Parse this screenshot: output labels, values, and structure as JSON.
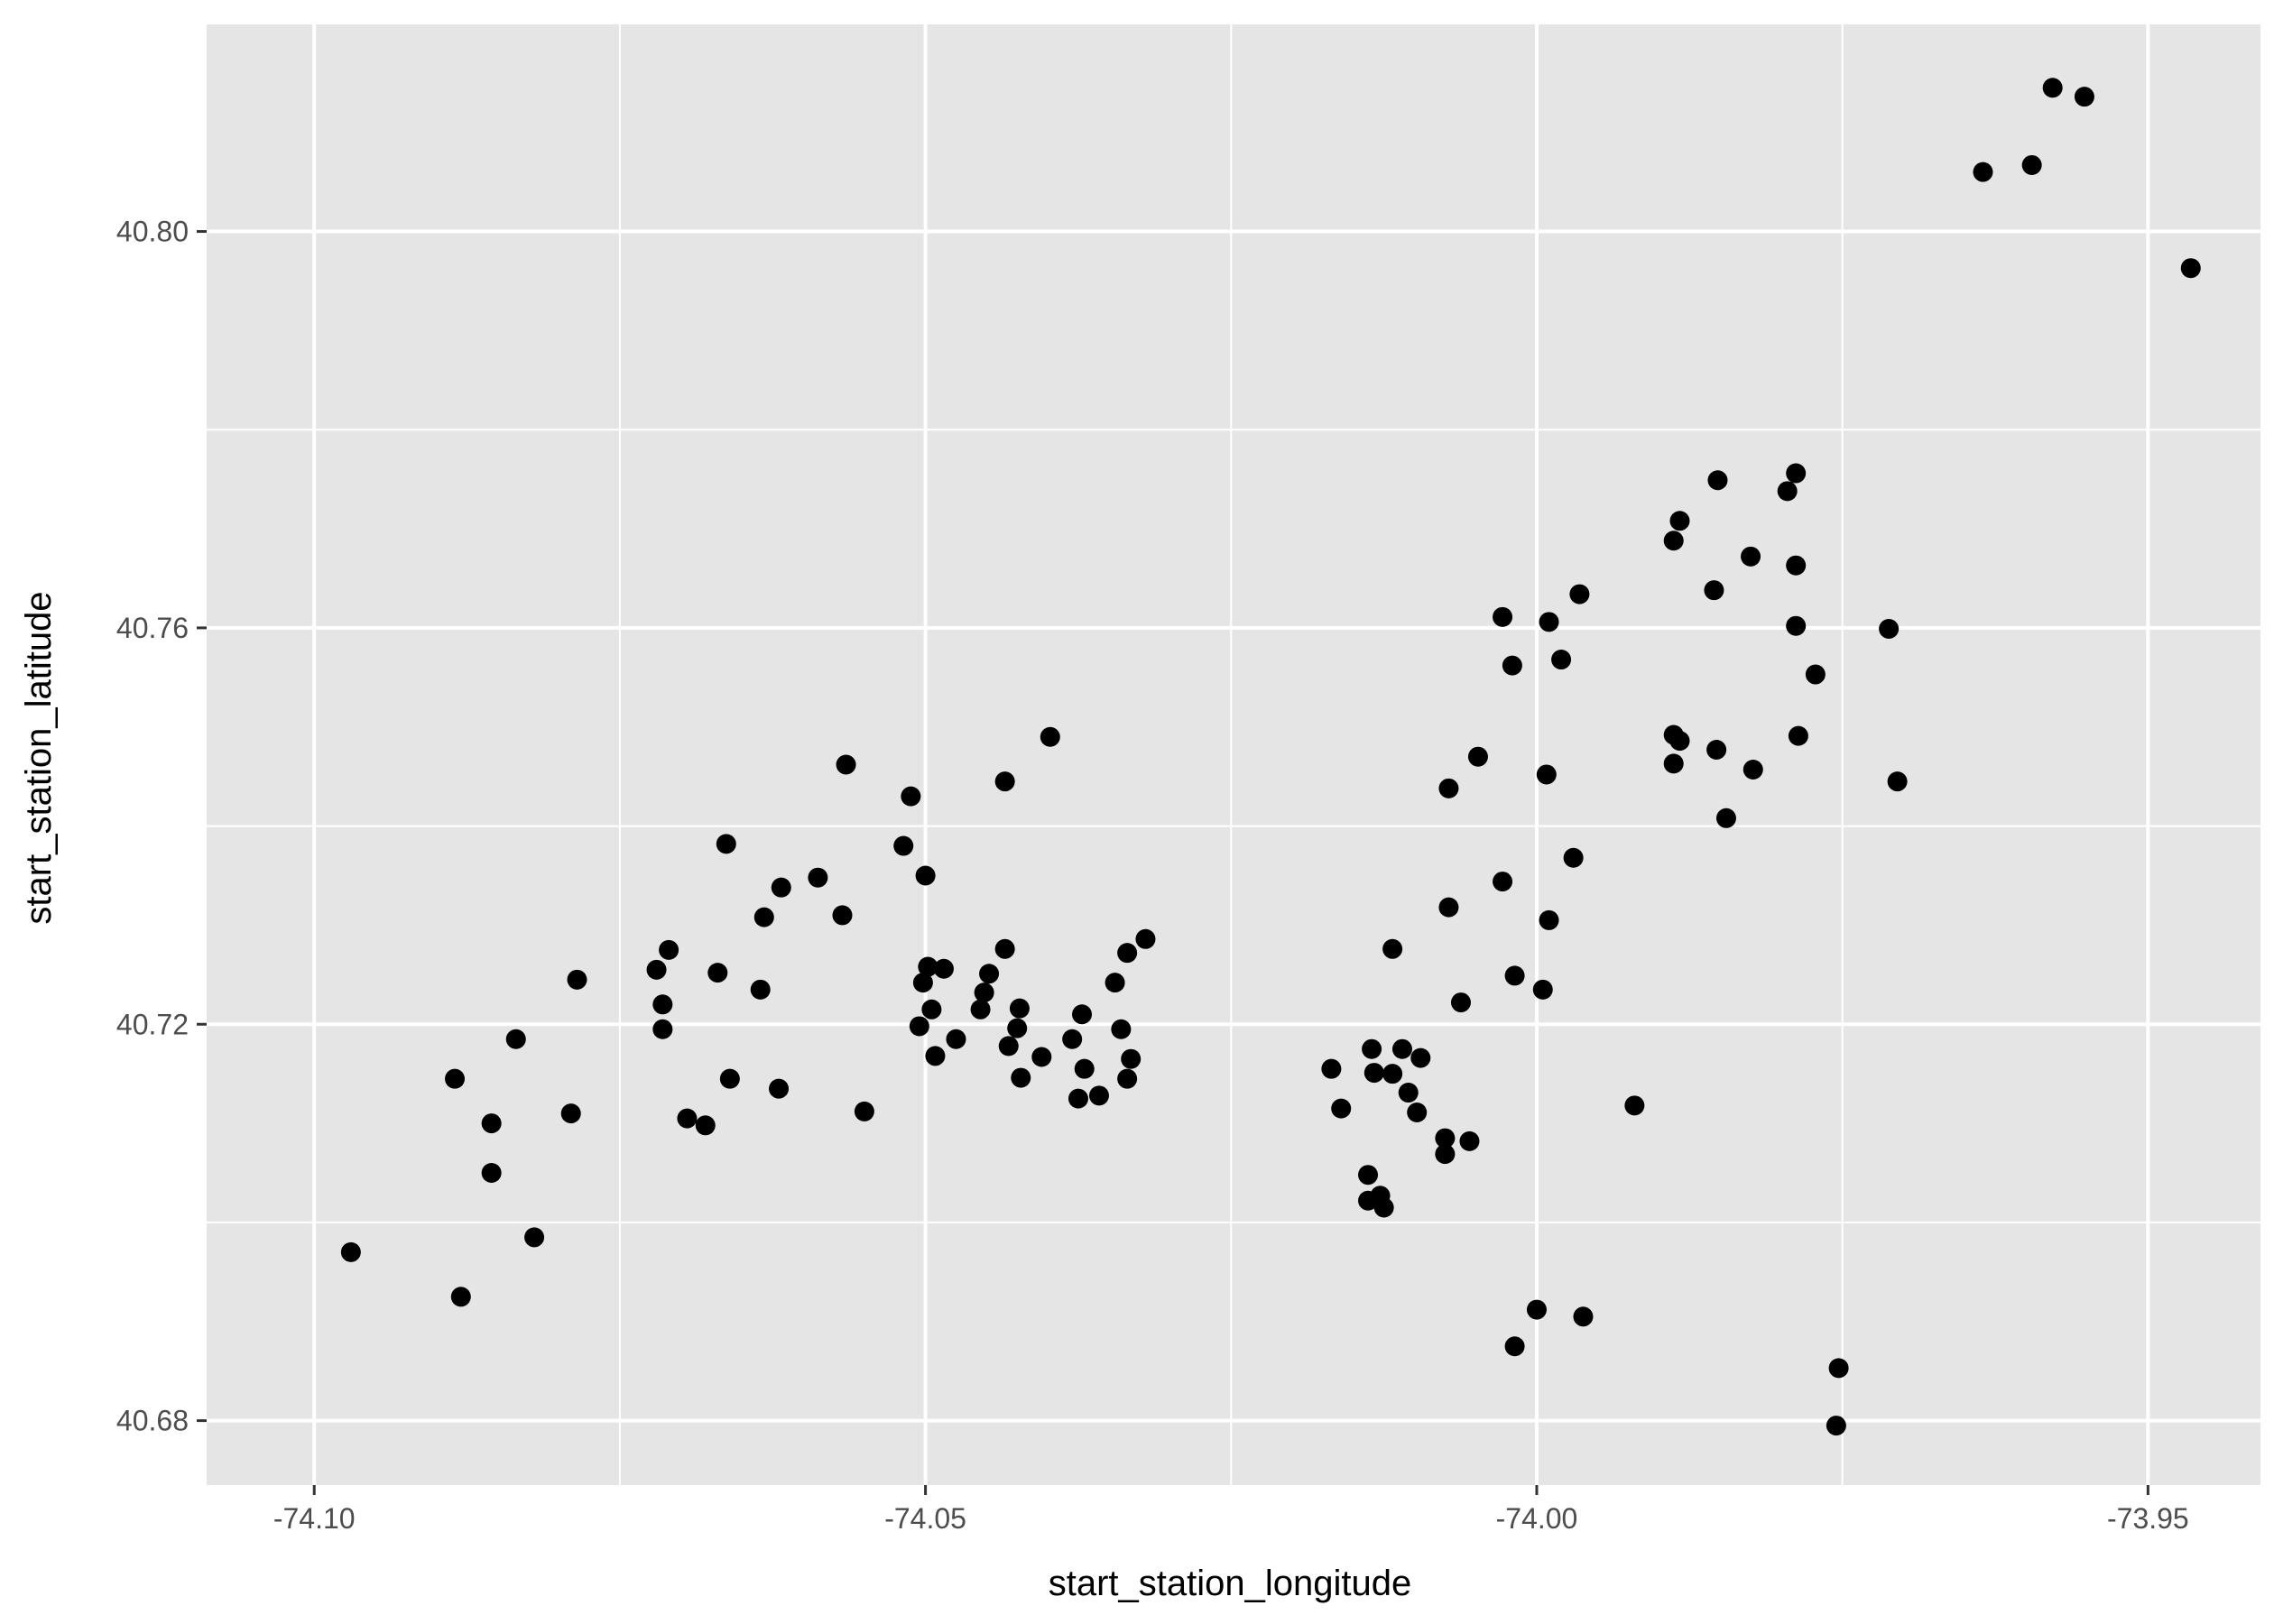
{
  "chart_data": {
    "type": "scatter",
    "title": "",
    "xlabel": "start_station_longitude",
    "ylabel": "start_station_latitude",
    "xlim": [
      -74.1088,
      -73.9408
    ],
    "ylim": [
      40.6735,
      40.8209
    ],
    "x_ticks": [
      -74.1,
      -74.05,
      -74.0,
      -73.95
    ],
    "x_tick_labels": [
      "-74.10",
      "-74.05",
      "-74.00",
      "-73.95"
    ],
    "y_ticks": [
      40.68,
      40.72,
      40.76,
      40.8
    ],
    "y_tick_labels": [
      "40.68",
      "40.72",
      "40.76",
      "40.80"
    ],
    "grid": true,
    "legend": "none",
    "colors": {
      "panel": "#e5e5e5",
      "grid": "#ffffff",
      "point": "#000000"
    },
    "points": [
      [
        -74.097,
        40.697
      ],
      [
        -74.088,
        40.6925
      ],
      [
        -74.0885,
        40.7145
      ],
      [
        -74.0855,
        40.71
      ],
      [
        -74.0855,
        40.705
      ],
      [
        -74.0835,
        40.7185
      ],
      [
        -74.082,
        40.6985
      ],
      [
        -74.0785,
        40.7245
      ],
      [
        -74.079,
        40.711
      ],
      [
        -74.072,
        40.7255
      ],
      [
        -74.0715,
        40.722
      ],
      [
        -74.0715,
        40.7195
      ],
      [
        -74.071,
        40.7275
      ],
      [
        -74.0695,
        40.7105
      ],
      [
        -74.068,
        40.7098
      ],
      [
        -74.067,
        40.7252
      ],
      [
        -74.0663,
        40.7382
      ],
      [
        -74.066,
        40.7145
      ],
      [
        -74.0635,
        40.7235
      ],
      [
        -74.0632,
        40.7308
      ],
      [
        -74.0618,
        40.7338
      ],
      [
        -74.062,
        40.7135
      ],
      [
        -74.0588,
        40.7348
      ],
      [
        -74.0568,
        40.731
      ],
      [
        -74.0565,
        40.7462
      ],
      [
        -74.055,
        40.7112
      ],
      [
        -74.0518,
        40.738
      ],
      [
        -74.0512,
        40.743
      ],
      [
        -74.0505,
        40.7198
      ],
      [
        -74.0502,
        40.7242
      ],
      [
        -74.0498,
        40.7258
      ],
      [
        -74.05,
        40.735
      ],
      [
        -74.0495,
        40.7215
      ],
      [
        -74.0492,
        40.7168
      ],
      [
        -74.0485,
        40.7256
      ],
      [
        -74.0475,
        40.7185
      ],
      [
        -74.0455,
        40.7215
      ],
      [
        -74.0452,
        40.7232
      ],
      [
        -74.0448,
        40.7251
      ],
      [
        -74.0435,
        40.7276
      ],
      [
        -74.0435,
        40.7445
      ],
      [
        -74.0432,
        40.7178
      ],
      [
        -74.0425,
        40.7196
      ],
      [
        -74.0423,
        40.7216
      ],
      [
        -74.0422,
        40.7146
      ],
      [
        -74.0405,
        40.7167
      ],
      [
        -74.0398,
        40.749
      ],
      [
        -74.038,
        40.7185
      ],
      [
        -74.0375,
        40.7125
      ],
      [
        -74.0372,
        40.721
      ],
      [
        -74.037,
        40.7155
      ],
      [
        -74.0358,
        40.7128
      ],
      [
        -74.0345,
        40.7242
      ],
      [
        -74.034,
        40.7195
      ],
      [
        -74.0335,
        40.7272
      ],
      [
        -74.0335,
        40.7145
      ],
      [
        -74.0332,
        40.7165
      ],
      [
        -74.032,
        40.7286
      ],
      [
        -74.0168,
        40.7155
      ],
      [
        -74.016,
        40.7115
      ],
      [
        -74.0138,
        40.7048
      ],
      [
        -74.0135,
        40.7175
      ],
      [
        -74.0133,
        40.7151
      ],
      [
        -74.0138,
        40.7022
      ],
      [
        -74.0128,
        40.7027
      ],
      [
        -74.0125,
        40.7015
      ],
      [
        -74.0118,
        40.7276
      ],
      [
        -74.0118,
        40.715
      ],
      [
        -74.011,
        40.7175
      ],
      [
        -74.0105,
        40.7131
      ],
      [
        -74.0098,
        40.7111
      ],
      [
        -74.0095,
        40.7166
      ],
      [
        -74.0075,
        40.7085
      ],
      [
        -74.0075,
        40.7069
      ],
      [
        -74.0072,
        40.7438
      ],
      [
        -74.0072,
        40.7318
      ],
      [
        -74.0062,
        40.7222
      ],
      [
        -74.0055,
        40.7082
      ],
      [
        -74.0048,
        40.747
      ],
      [
        -74.0028,
        40.7344
      ],
      [
        -74.0028,
        40.7611
      ],
      [
        -74.002,
        40.7562
      ],
      [
        -74.0018,
        40.7249
      ],
      [
        -74.0018,
        40.6875
      ],
      [
        -74.0,
        40.6912
      ],
      [
        -73.9995,
        40.7235
      ],
      [
        -73.9992,
        40.7452
      ],
      [
        -73.999,
        40.7305
      ],
      [
        -73.999,
        40.7606
      ],
      [
        -73.998,
        40.7568
      ],
      [
        -73.997,
        40.7368
      ],
      [
        -73.9965,
        40.7634
      ],
      [
        -73.9962,
        40.6905
      ],
      [
        -73.992,
        40.7118
      ],
      [
        -73.9888,
        40.7688
      ],
      [
        -73.9888,
        40.7463
      ],
      [
        -73.9888,
        40.7492
      ],
      [
        -73.9883,
        40.7486
      ],
      [
        -73.9883,
        40.7708
      ],
      [
        -73.9855,
        40.7638
      ],
      [
        -73.9853,
        40.7477
      ],
      [
        -73.9852,
        40.7749
      ],
      [
        -73.9845,
        40.7408
      ],
      [
        -73.9825,
        40.7672
      ],
      [
        -73.9823,
        40.7457
      ],
      [
        -73.9795,
        40.7738
      ],
      [
        -73.9788,
        40.7756
      ],
      [
        -73.9788,
        40.7663
      ],
      [
        -73.9788,
        40.7602
      ],
      [
        -73.9786,
        40.7491
      ],
      [
        -73.9772,
        40.7553
      ],
      [
        -73.9755,
        40.6795
      ],
      [
        -73.9753,
        40.6853
      ],
      [
        -73.9712,
        40.7599
      ],
      [
        -73.9705,
        40.7445
      ],
      [
        -73.9635,
        40.806
      ],
      [
        -73.9595,
        40.8067
      ],
      [
        -73.9578,
        40.8145
      ],
      [
        -73.9552,
        40.8136
      ],
      [
        -73.9465,
        40.7963
      ]
    ]
  }
}
